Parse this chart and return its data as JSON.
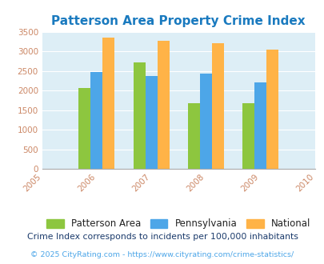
{
  "title": "Patterson Area Property Crime Index",
  "years": [
    2005,
    2006,
    2007,
    2008,
    2009,
    2010
  ],
  "bar_years": [
    2006,
    2007,
    2008,
    2009
  ],
  "patterson": [
    2070,
    2720,
    1680,
    1680
  ],
  "pennsylvania": [
    2480,
    2380,
    2440,
    2200
  ],
  "national": [
    3340,
    3270,
    3210,
    3040
  ],
  "color_patterson": "#8dc63f",
  "color_pennsylvania": "#4da6e8",
  "color_national": "#ffb347",
  "ylim": [
    0,
    3500
  ],
  "yticks": [
    0,
    500,
    1000,
    1500,
    2000,
    2500,
    3000,
    3500
  ],
  "bg_color": "#ddeef6",
  "legend_labels": [
    "Patterson Area",
    "Pennsylvania",
    "National"
  ],
  "footnote1": "Crime Index corresponds to incidents per 100,000 inhabitants",
  "footnote2": "© 2025 CityRating.com - https://www.cityrating.com/crime-statistics/",
  "title_color": "#1a7abf",
  "footnote1_color": "#1a3a6b",
  "footnote2_color": "#4da6e8",
  "tick_color": "#cc8866",
  "bar_width": 0.22
}
